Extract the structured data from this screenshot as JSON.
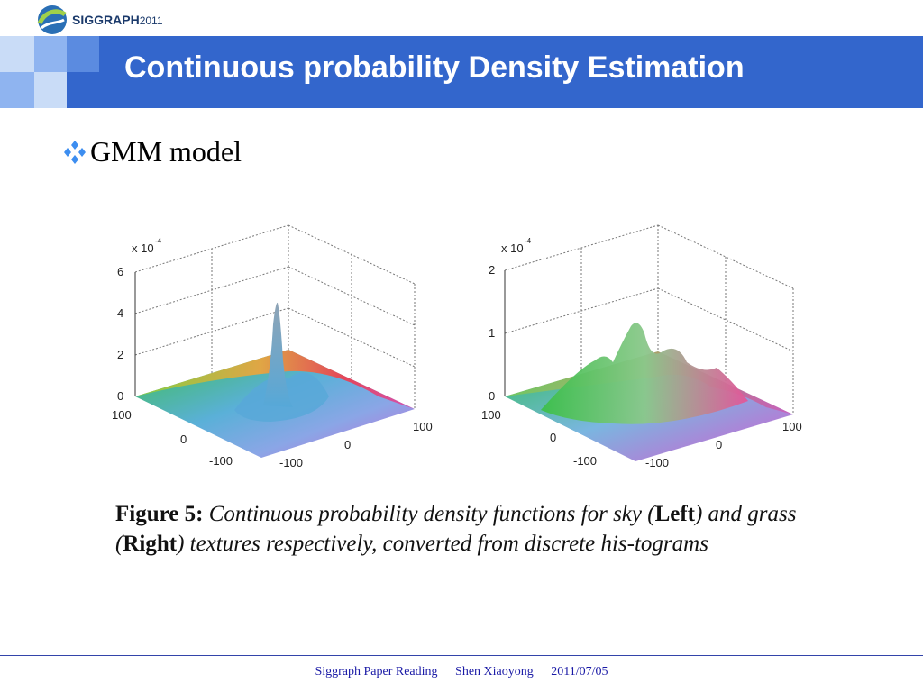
{
  "logo": {
    "name": "SIGGRAPH",
    "year": "2011"
  },
  "slide": {
    "title": "Continuous probability Density Estimation"
  },
  "bullet": {
    "text": "GMM model"
  },
  "figure": {
    "left": {
      "exponent_label": "x 10",
      "exponent": "-4",
      "z_ticks": [
        "6",
        "4",
        "2",
        "0"
      ],
      "x_ticks": [
        "100",
        "0",
        "-100"
      ],
      "y_ticks": [
        "-100",
        "0",
        "100"
      ]
    },
    "right": {
      "exponent_label": "x 10",
      "exponent": "-4",
      "z_ticks": [
        "2",
        "1",
        "0"
      ],
      "x_ticks": [
        "100",
        "0",
        "-100"
      ],
      "y_ticks": [
        "-100",
        "0",
        "100"
      ]
    }
  },
  "caption": {
    "label": "Figure 5:",
    "part1": "Continuous probability density functions for sky (",
    "left": "Left",
    "part2": ") and grass (",
    "right": "Right",
    "part3": ") textures respectively, converted from discrete his-tograms"
  },
  "footer": {
    "event": "Siggraph Paper Reading",
    "author": "Shen Xiaoyong",
    "date": "2011/07/05"
  },
  "colors": {
    "title_bar": "#3366cc",
    "accent_light": "#8fb4f0",
    "footer_text": "#1a1aa6"
  }
}
